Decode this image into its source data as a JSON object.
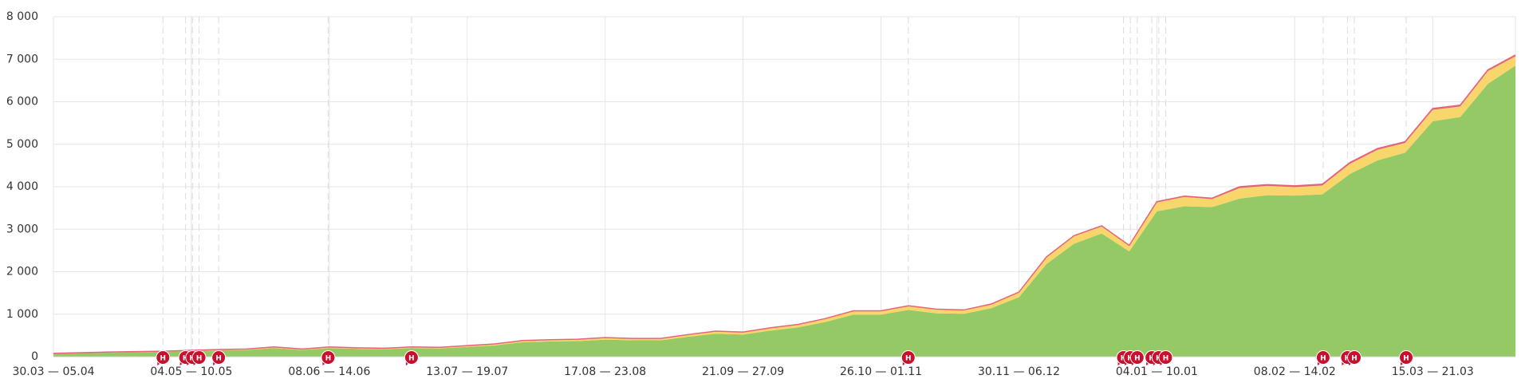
{
  "chart_data": {
    "type": "stacked-area",
    "categories": [
      "30.03 — 05.04",
      null,
      null,
      null,
      null,
      "04.05 — 10.05",
      null,
      null,
      null,
      null,
      "08.06 — 14.06",
      null,
      null,
      null,
      null,
      "13.07 — 19.07",
      null,
      null,
      null,
      null,
      "17.08 — 23.08",
      null,
      null,
      null,
      null,
      "21.09 — 27.09",
      null,
      null,
      null,
      null,
      "26.10 — 01.11",
      null,
      null,
      null,
      null,
      "30.11 — 06.12",
      null,
      null,
      null,
      null,
      "04.01 — 10.01",
      null,
      null,
      null,
      null,
      "08.02 — 14.02",
      null,
      null,
      null,
      null,
      "15.03 — 21.03",
      null,
      null,
      null
    ],
    "series": [
      {
        "color": "#95c965",
        "values": [
          70,
          83,
          96,
          105,
          114,
          132,
          150,
          158,
          204,
          158,
          204,
          186,
          176,
          204,
          194,
          230,
          266,
          340,
          358,
          366,
          402,
          384,
          384,
          466,
          540,
          522,
          614,
          690,
          820,
          990,
          990,
          1100,
          1020,
          1010,
          1140,
          1400,
          2180,
          2660,
          2900,
          2480,
          3420,
          3540,
          3520,
          3720,
          3800,
          3790,
          3820,
          4300,
          4620,
          4800,
          5540,
          5640,
          6420,
          6850
        ]
      },
      {
        "color": "#f9d66b",
        "values": [
          8,
          10,
          12,
          13,
          14,
          16,
          18,
          20,
          24,
          20,
          24,
          22,
          22,
          24,
          24,
          28,
          32,
          37,
          39,
          41,
          45,
          43,
          43,
          50,
          56,
          54,
          62,
          66,
          75,
          85,
          85,
          94,
          94,
          84,
          94,
          112,
          160,
          178,
          166,
          126,
          210,
          220,
          190,
          250,
          220,
          200,
          210,
          240,
          250,
          230,
          270,
          250,
          300,
          220
        ]
      },
      {
        "color": "#dc5f7c",
        "values": [
          2,
          2,
          2,
          2,
          2,
          2,
          2,
          2,
          2,
          2,
          2,
          2,
          2,
          2,
          2,
          2,
          2,
          3,
          3,
          3,
          3,
          3,
          3,
          4,
          4,
          4,
          4,
          4,
          5,
          5,
          5,
          6,
          6,
          6,
          6,
          8,
          10,
          12,
          14,
          14,
          20,
          20,
          20,
          30,
          30,
          30,
          30,
          30,
          30,
          30,
          30,
          30,
          30,
          30
        ]
      }
    ],
    "ylim": [
      0,
      8000
    ],
    "yticks": [
      0,
      {
        "value": 1000,
        "label": "1 000"
      },
      {
        "value": 2000,
        "label": "2 000"
      },
      {
        "value": 3000,
        "label": "3 000"
      },
      {
        "value": 4000,
        "label": "4 000"
      },
      {
        "value": 5000,
        "label": "5 000"
      },
      {
        "value": 6000,
        "label": "6 000"
      },
      {
        "value": 7000,
        "label": "7 000"
      },
      {
        "value": 8000,
        "label": "8 000"
      }
    ],
    "grid": true,
    "annotations": [
      {
        "x": 3.97,
        "text": "H"
      },
      {
        "x": 4.79,
        "text": "H"
      },
      {
        "x": 5.04,
        "text": "H"
      },
      {
        "x": 5.28,
        "text": "H"
      },
      {
        "x": 5.99,
        "text": "H"
      },
      {
        "x": 9.96,
        "text": "H"
      },
      {
        "x": 12.98,
        "text": "H"
      },
      {
        "x": 30.99,
        "text": "H"
      },
      {
        "x": 38.79,
        "text": "H"
      },
      {
        "x": 39.04,
        "text": "H"
      },
      {
        "x": 39.29,
        "text": "H"
      },
      {
        "x": 39.82,
        "text": "H"
      },
      {
        "x": 40.07,
        "text": "H"
      },
      {
        "x": 40.32,
        "text": "H"
      },
      {
        "x": 46.03,
        "text": "H"
      },
      {
        "x": 46.91,
        "text": "H"
      },
      {
        "x": 47.16,
        "text": "H"
      },
      {
        "x": 49.04,
        "text": "H"
      }
    ]
  }
}
